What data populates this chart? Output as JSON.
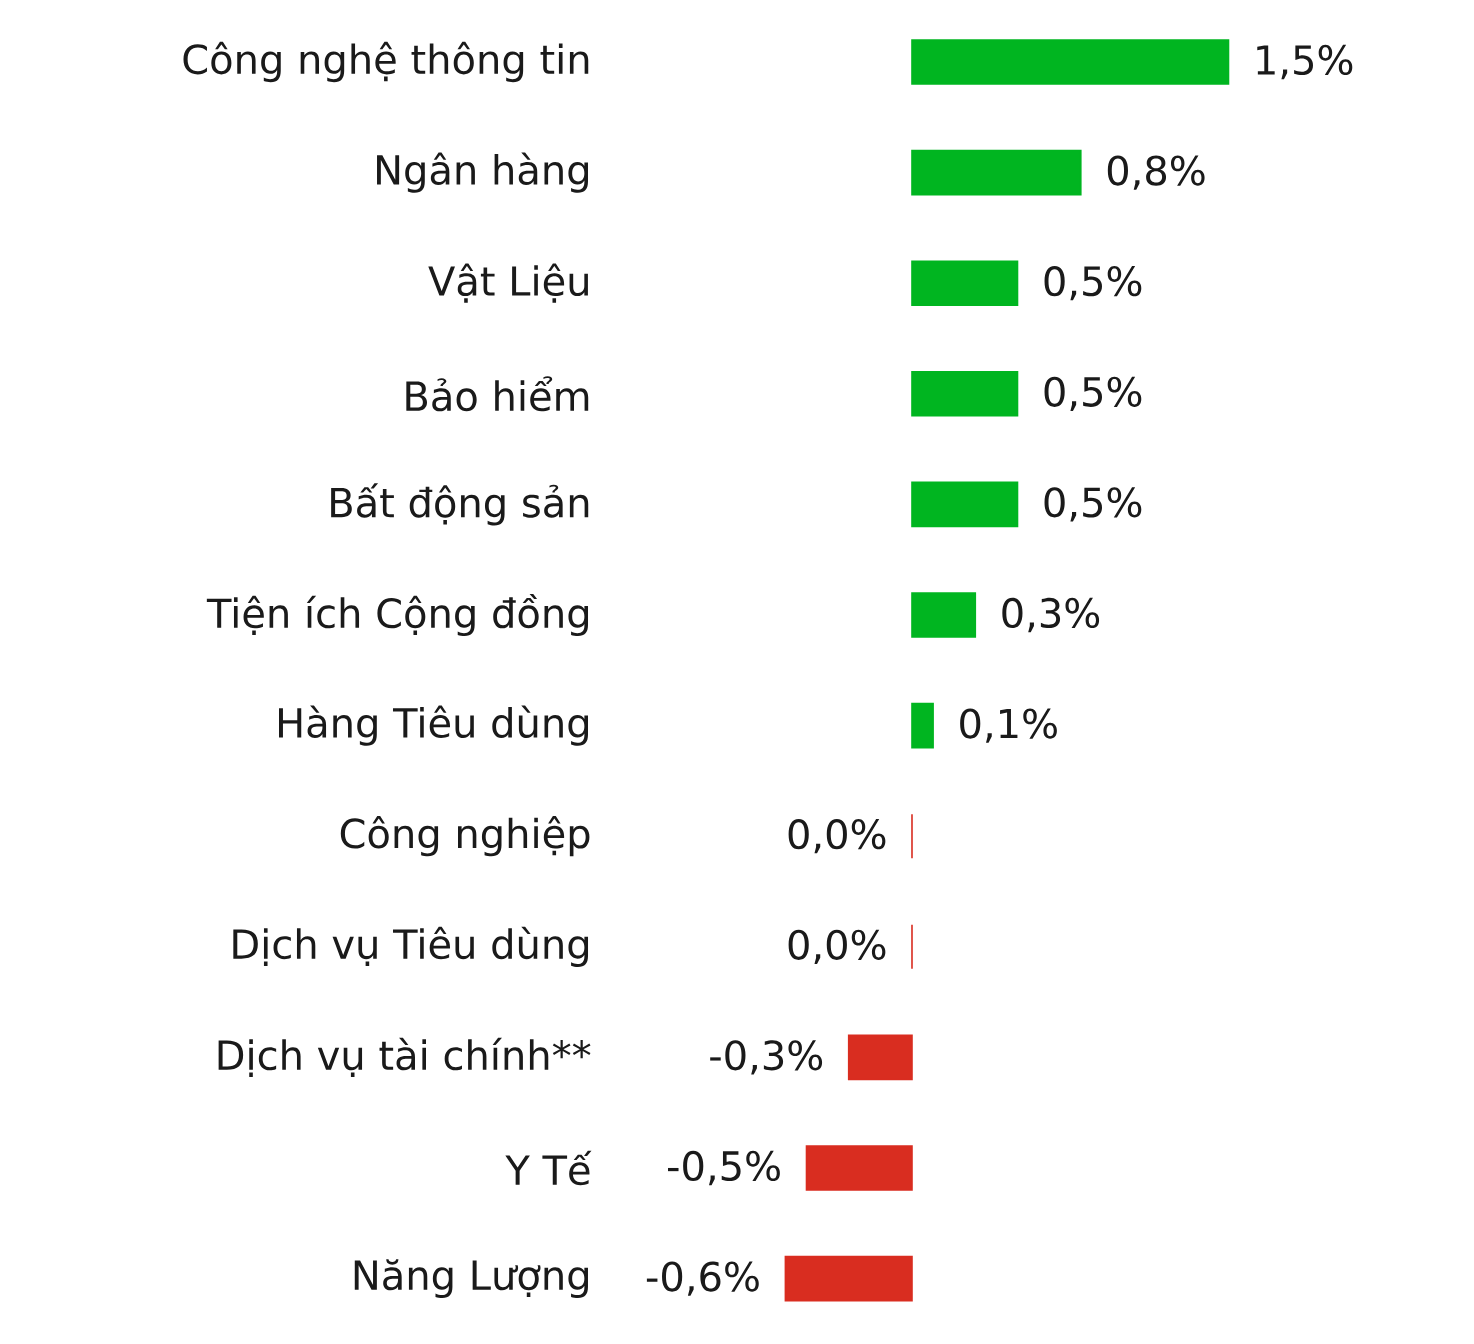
{
  "chart_data": {
    "type": "bar",
    "orientation": "horizontal",
    "categories": [
      "Công nghệ thông tin",
      "Ngân hàng",
      "Vật Liệu",
      "Bảo hiểm",
      "Bất động sản",
      "Tiện ích Cộng đồng",
      "Hàng Tiêu dùng",
      "Công nghiệp",
      "Dịch vụ Tiêu dùng",
      "Dịch vụ tài chính**",
      "Y Tế",
      "Năng Lượng"
    ],
    "values": [
      1.5,
      0.8,
      0.5,
      0.5,
      0.5,
      0.3,
      0.1,
      0.0,
      0.0,
      -0.3,
      -0.5,
      -0.6
    ],
    "colors": [
      "#00b520",
      "#00b520",
      "#00b520",
      "#00b520",
      "#00b520",
      "#00b520",
      "#00b520",
      "#d92d20",
      "#d92d20",
      "#d92d20",
      "#d92d20",
      "#d92d20"
    ],
    "value_labels": [
      "1,5%",
      "0,8%",
      "0,5%",
      "0,5%",
      "0,5%",
      "0,3%",
      "0,1%",
      "0,0%",
      "0,0%",
      "-0,3%",
      "-0,5%",
      "-0,6%"
    ]
  }
}
